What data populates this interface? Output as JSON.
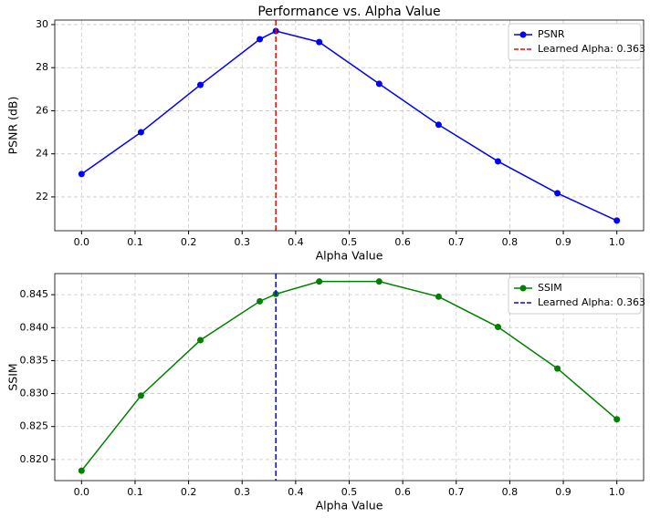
{
  "chart_data": [
    {
      "type": "line",
      "title": "Performance vs. Alpha Value",
      "x_label": "Alpha Value",
      "y_label": "PSNR (dB)",
      "x": [
        0,
        0.111,
        0.222,
        0.333,
        0.363,
        0.444,
        0.556,
        0.667,
        0.778,
        0.889,
        1.0
      ],
      "series": [
        {
          "name": "PSNR",
          "color": "#0000ff",
          "values": [
            23.06,
            25.0,
            27.2,
            29.32,
            29.7,
            29.19,
            27.25,
            25.35,
            23.65,
            22.17,
            20.9
          ]
        }
      ],
      "vline": {
        "value": 0.363,
        "label": "Learned Alpha: 0.363",
        "color": "#ff0000"
      },
      "xlim": [
        -0.05,
        1.05
      ],
      "xticks": [
        {
          "value": 0,
          "label": "0.0"
        },
        0.1,
        0.2,
        0.3,
        0.4,
        0.5,
        0.6,
        0.7,
        0.8,
        0.9,
        {
          "value": 1.0,
          "label": "1.0"
        }
      ],
      "ylim": [
        20.43,
        30.21
      ],
      "yticks": [
        22,
        24,
        26,
        28,
        30
      ],
      "grid": true,
      "legend": "upper right"
    },
    {
      "type": "line",
      "x_label": "Alpha Value",
      "y_label": "SSIM",
      "x": [
        0,
        0.111,
        0.222,
        0.333,
        0.363,
        0.444,
        0.556,
        0.667,
        0.778,
        0.889,
        1.0
      ],
      "series": [
        {
          "name": "SSIM",
          "color": "#008000",
          "values": [
            0.8183,
            0.8297,
            0.8381,
            0.844,
            0.8451,
            0.847,
            0.847,
            0.8447,
            0.8401,
            0.8338,
            0.8261
          ]
        }
      ],
      "vline": {
        "value": 0.363,
        "label": "Learned Alpha: 0.363",
        "color": "#0000ff"
      },
      "xlim": [
        -0.05,
        1.05
      ],
      "xticks": [
        {
          "value": 0,
          "label": "0.0"
        },
        0.1,
        0.2,
        0.3,
        0.4,
        0.5,
        0.6,
        0.7,
        0.8,
        0.9,
        {
          "value": 1.0,
          "label": "1.0"
        }
      ],
      "ylim": [
        0.8168,
        0.8482
      ],
      "yticks": [
        {
          "value": 0.82,
          "label": "0.820"
        },
        0.825,
        {
          "value": 0.83,
          "label": "0.830"
        },
        0.835,
        {
          "value": 0.84,
          "label": "0.840"
        },
        0.845
      ],
      "grid": true,
      "legend": "upper right"
    }
  ]
}
